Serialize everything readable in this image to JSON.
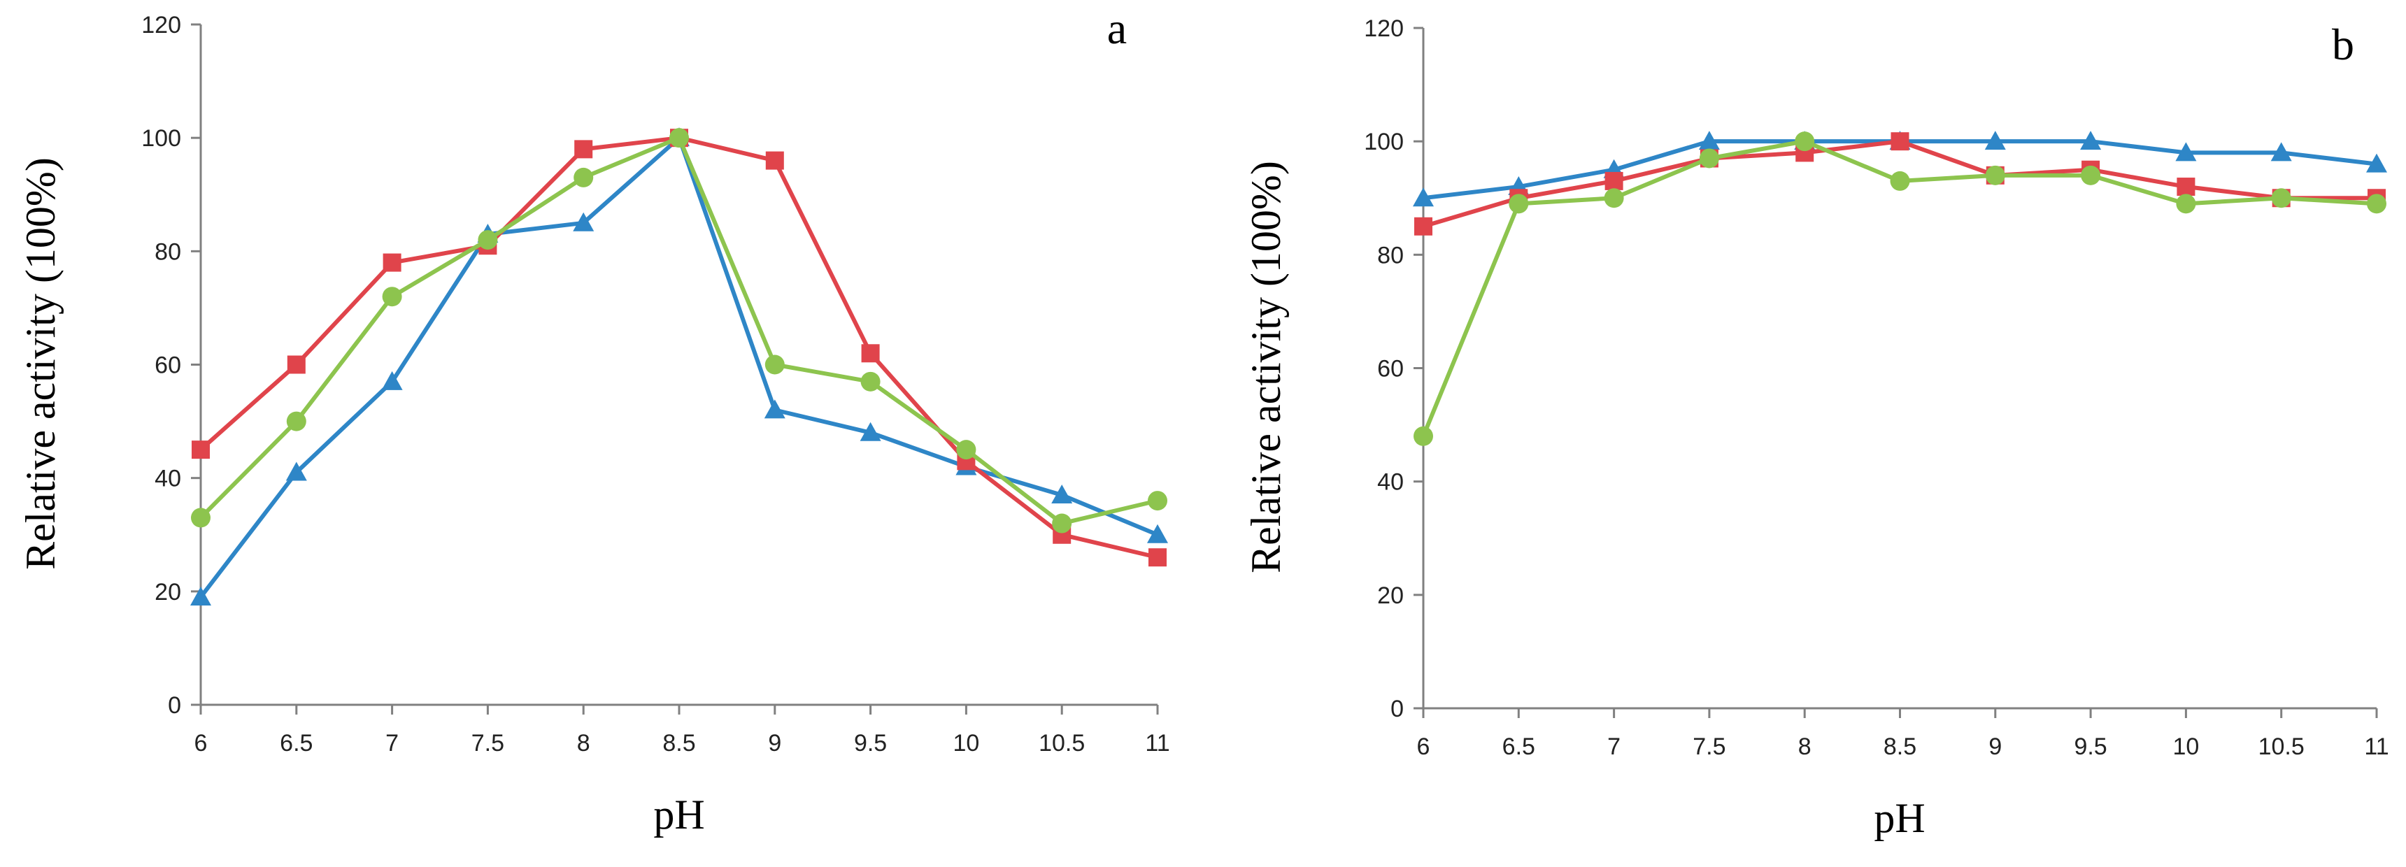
{
  "colors": {
    "blue": "#2E86C7",
    "red": "#E0444B",
    "green": "#8DC44E",
    "axis": "#808080"
  },
  "chart_data": [
    {
      "type": "line",
      "panel_label": "a",
      "xlabel": "pH",
      "ylabel": "Relative activity (100%)",
      "x": [
        "6",
        "6.5",
        "7",
        "7.5",
        "8",
        "8.5",
        "9",
        "9.5",
        "10",
        "10.5",
        "11"
      ],
      "y_ticks": [
        "0",
        "20",
        "40",
        "60",
        "80",
        "100",
        "120"
      ],
      "ylim": [
        0,
        120
      ],
      "grid": false,
      "legend": "none",
      "series": [
        {
          "color": "#2E86C7",
          "marker": "triangle",
          "values": [
            19,
            41,
            57,
            83,
            85,
            100,
            52,
            48,
            42,
            37,
            30
          ]
        },
        {
          "color": "#E0444B",
          "marker": "square",
          "values": [
            45,
            60,
            78,
            81,
            98,
            100,
            96,
            62,
            43,
            30,
            26
          ]
        },
        {
          "color": "#8DC44E",
          "marker": "circle",
          "values": [
            33,
            50,
            72,
            82,
            93,
            100,
            60,
            57,
            45,
            32,
            36
          ]
        }
      ]
    },
    {
      "type": "line",
      "panel_label": "b",
      "xlabel": "pH",
      "ylabel": "Relative activity (100%)",
      "x": [
        "6",
        "6.5",
        "7",
        "7.5",
        "8",
        "8.5",
        "9",
        "9.5",
        "10",
        "10.5",
        "11"
      ],
      "y_ticks": [
        "0",
        "20",
        "40",
        "60",
        "80",
        "100",
        "120"
      ],
      "ylim": [
        0,
        120
      ],
      "grid": false,
      "legend": "none",
      "series": [
        {
          "color": "#2E86C7",
          "marker": "triangle",
          "values": [
            90,
            92,
            95,
            100,
            100,
            100,
            100,
            100,
            98,
            98,
            96
          ]
        },
        {
          "color": "#E0444B",
          "marker": "square",
          "values": [
            85,
            90,
            93,
            97,
            98,
            100,
            94,
            95,
            92,
            90,
            90
          ]
        },
        {
          "color": "#8DC44E",
          "marker": "circle",
          "values": [
            48,
            89,
            90,
            97,
            100,
            93,
            94,
            94,
            89,
            90,
            89
          ]
        }
      ]
    }
  ]
}
